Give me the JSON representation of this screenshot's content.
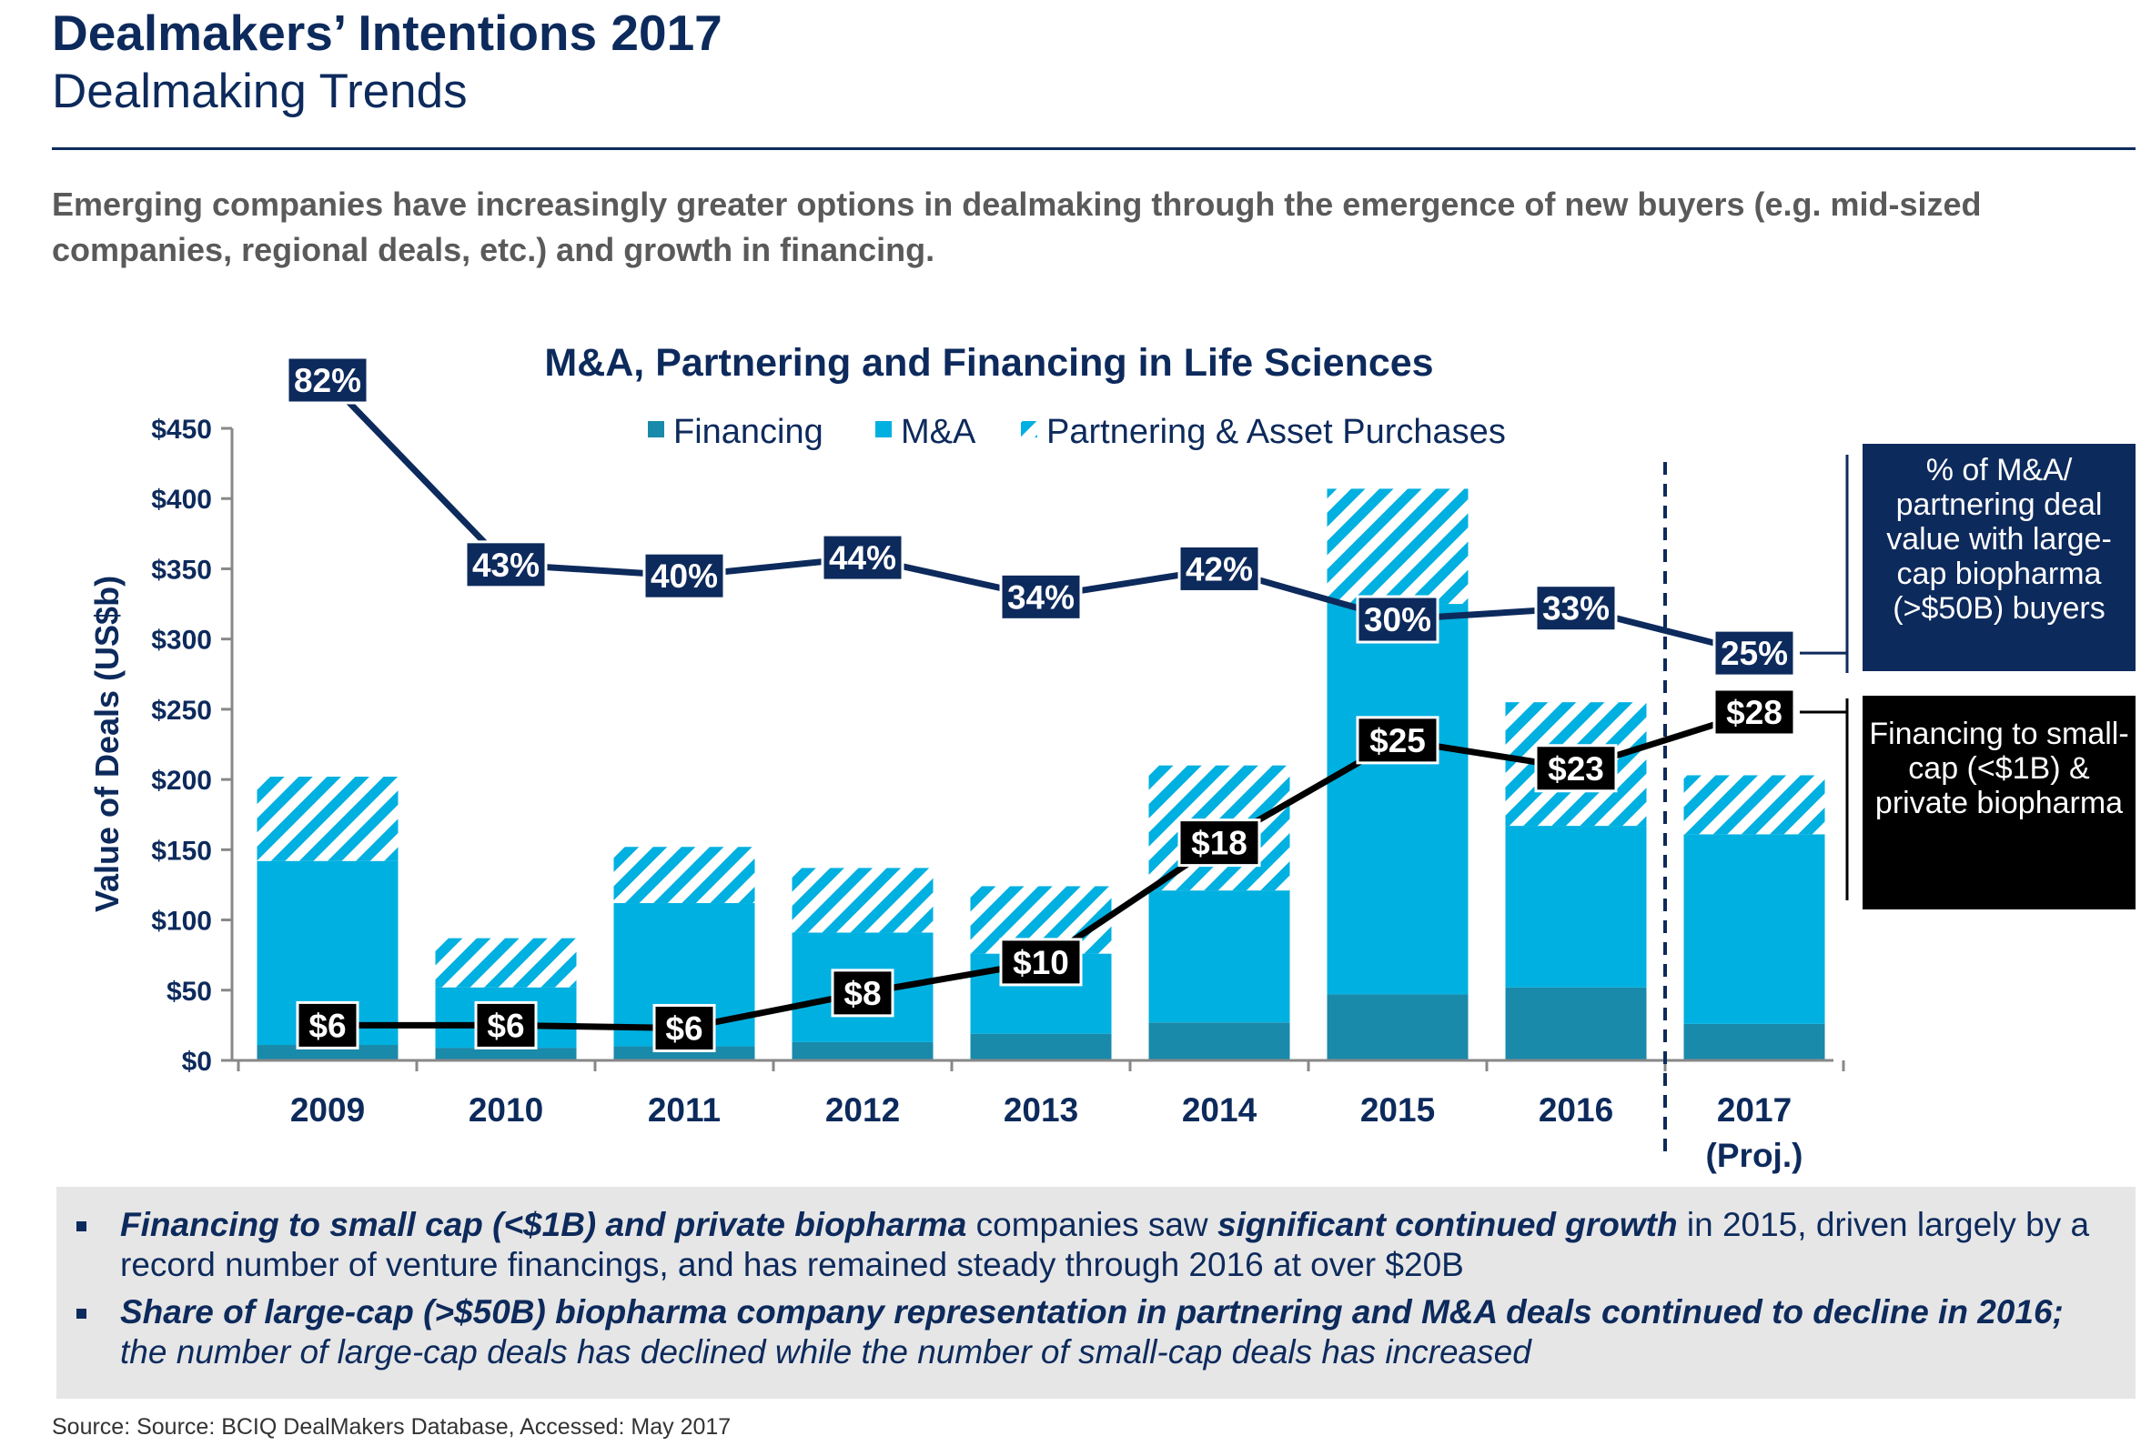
{
  "header": {
    "title": "Dealmakers’ Intentions 2017",
    "subtitle": "Dealmaking Trends",
    "intro": "Emerging companies have increasingly greater options in dealmaking through the emergence of new buyers (e.g. mid-sized companies, regional deals, etc.) and growth in financing."
  },
  "chart_data": {
    "type": "bar",
    "stacked": true,
    "title": "M&A, Partnering and Financing in Life Sciences",
    "ylabel": "Value of Deals (US$b)",
    "xlabel": "",
    "ylim": [
      0,
      450
    ],
    "yticks": [
      "$0",
      "$50",
      "$100",
      "$150",
      "$200",
      "$250",
      "$300",
      "$350",
      "$400",
      "$450"
    ],
    "categories": [
      "2009",
      "2010",
      "2011",
      "2012",
      "2013",
      "2014",
      "2015",
      "2016",
      "2017"
    ],
    "category_sublabels": [
      "",
      "",
      "",
      "",
      "",
      "",
      "",
      "",
      "(Proj.)"
    ],
    "series": [
      {
        "name": "Financing",
        "color": "#1a8aaa",
        "values": [
          11,
          9,
          10,
          13,
          19,
          27,
          47,
          52,
          26
        ]
      },
      {
        "name": "M&A",
        "color": "#00b0e0",
        "values": [
          131,
          43,
          102,
          78,
          57,
          94,
          278,
          115,
          135
        ]
      },
      {
        "name": "Partnering & Asset Purchases",
        "color": "#00b0e0",
        "pattern": "hatch",
        "values": [
          60,
          35,
          40,
          46,
          48,
          89,
          82,
          88,
          42
        ]
      }
    ],
    "lines": [
      {
        "name": "% of M&A/ partnering deal value with large-cap biopharma (>$50B) buyers",
        "color": "#0d2a5c",
        "y_positions": [
          482,
          353,
          345,
          358,
          330,
          350,
          314,
          322,
          290
        ],
        "labels": [
          "82%",
          "43%",
          "40%",
          "44%",
          "34%",
          "42%",
          "30%",
          "33%",
          "25%"
        ]
      },
      {
        "name": "Financing to small-cap (<$1B) & private biopharma",
        "color": "#000000",
        "y_positions": [
          25,
          25,
          23,
          48,
          70,
          155,
          228,
          208,
          248
        ],
        "labels": [
          "$6",
          "$6",
          "$6",
          "$8",
          "$10",
          "$18",
          "$25",
          "$23",
          "$28"
        ]
      }
    ],
    "legend_position": "top",
    "projection_divider_after": "2016"
  },
  "callouts": {
    "blue_text": "% of M&A/ partnering deal value with large-cap biopharma (>$50B) buyers",
    "black_text": "Financing to small-cap (<$1B) & private biopharma"
  },
  "notes": [
    {
      "strong": "Financing to small cap (<$1B) and private biopharma",
      "t1": " companies saw ",
      "strong2": "significant continued growth",
      "t2": " in 2015, driven largely by a record number of venture financings, and has remained steady through 2016 at over $20B"
    },
    {
      "strong": "Share of large-cap (>$50B) biopharma company representation in partnering and M&A deals continued to decline in 2016;",
      "t1": " the number of large-cap deals has declined while the number of small-cap deals has increased"
    }
  ],
  "source": "Source: Source: BCIQ DealMakers Database, Accessed: May 2017",
  "colors": {
    "navy": "#0d2a5c",
    "financing": "#1a8aaa",
    "ma": "#00b0e0",
    "notes_bg": "#e6e6e6"
  }
}
